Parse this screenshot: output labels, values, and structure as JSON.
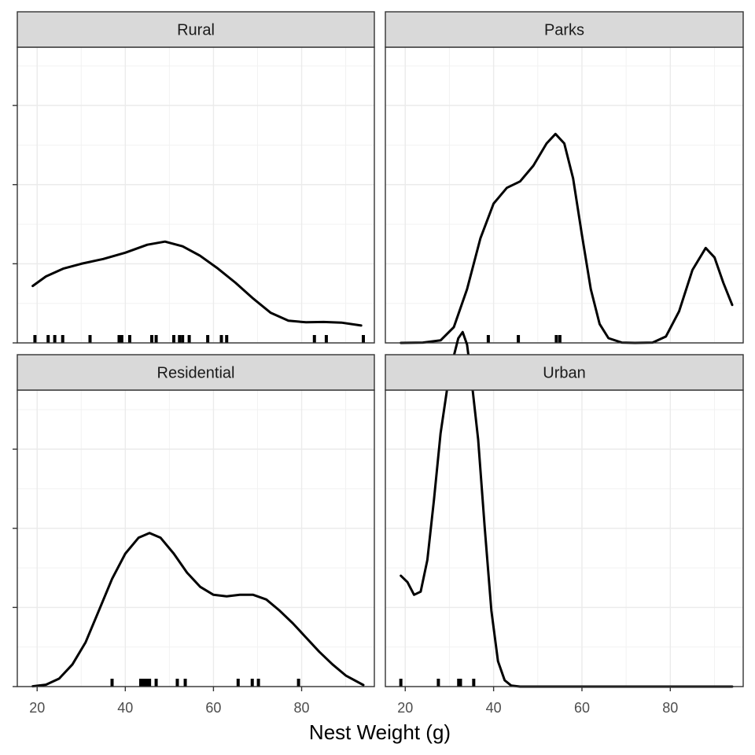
{
  "chart_data": {
    "type": "density",
    "xlabel": "Nest Weight (g)",
    "ylabel": "",
    "x_ticks": [
      20,
      40,
      60,
      80
    ],
    "xlim": [
      15.5,
      96.5
    ],
    "ylim": [
      0,
      1
    ],
    "y_ticks": [
      0,
      0.25,
      0.5,
      0.75
    ],
    "y_tick_labels_shown": false,
    "grid": true,
    "theme": "bw",
    "colors": {
      "panel_border": "#333333",
      "strip_fill": "#d9d9d9",
      "grid_major": "#ebebeb",
      "grid_minor": "#f2f2f2",
      "curve": "#000000"
    },
    "panels": [
      {
        "name": "Rural",
        "density": [
          [
            19,
            0.18
          ],
          [
            22,
            0.21
          ],
          [
            26,
            0.235
          ],
          [
            30,
            0.25
          ],
          [
            35,
            0.265
          ],
          [
            40,
            0.285
          ],
          [
            45,
            0.31
          ],
          [
            49,
            0.32
          ],
          [
            53,
            0.305
          ],
          [
            57,
            0.275
          ],
          [
            61,
            0.235
          ],
          [
            65,
            0.19
          ],
          [
            69,
            0.14
          ],
          [
            73,
            0.095
          ],
          [
            77,
            0.07
          ],
          [
            81,
            0.065
          ],
          [
            85,
            0.066
          ],
          [
            89,
            0.064
          ],
          [
            93.5,
            0.055
          ]
        ],
        "rug": [
          19.5,
          22.5,
          24,
          25.8,
          32,
          38.6,
          39.2,
          41,
          46,
          47,
          51,
          52.3,
          53,
          54.5,
          58.7,
          61.8,
          63,
          82.9,
          85.6,
          94
        ]
      },
      {
        "name": "Parks",
        "density": [
          [
            19,
            0
          ],
          [
            24,
            0.001
          ],
          [
            28,
            0.008
          ],
          [
            31,
            0.05
          ],
          [
            34,
            0.17
          ],
          [
            37,
            0.33
          ],
          [
            40,
            0.44
          ],
          [
            43,
            0.49
          ],
          [
            46,
            0.51
          ],
          [
            49,
            0.56
          ],
          [
            52,
            0.63
          ],
          [
            54,
            0.66
          ],
          [
            56,
            0.63
          ],
          [
            58,
            0.52
          ],
          [
            60,
            0.34
          ],
          [
            62,
            0.17
          ],
          [
            64,
            0.06
          ],
          [
            66,
            0.015
          ],
          [
            69,
            0.001
          ],
          [
            72,
            0
          ],
          [
            76,
            0.001
          ],
          [
            79,
            0.02
          ],
          [
            82,
            0.1
          ],
          [
            85,
            0.23
          ],
          [
            88,
            0.3
          ],
          [
            90,
            0.27
          ],
          [
            92,
            0.19
          ],
          [
            94,
            0.12
          ]
        ],
        "rug": [
          38.8,
          45.6,
          54.2,
          55
        ]
      },
      {
        "name": "Residential",
        "density": [
          [
            19,
            0.001
          ],
          [
            22,
            0.006
          ],
          [
            25,
            0.025
          ],
          [
            28,
            0.07
          ],
          [
            31,
            0.14
          ],
          [
            34,
            0.24
          ],
          [
            37,
            0.34
          ],
          [
            40,
            0.42
          ],
          [
            43,
            0.47
          ],
          [
            45.5,
            0.485
          ],
          [
            48,
            0.47
          ],
          [
            51,
            0.42
          ],
          [
            54,
            0.36
          ],
          [
            57,
            0.315
          ],
          [
            60,
            0.29
          ],
          [
            63,
            0.285
          ],
          [
            66,
            0.29
          ],
          [
            69,
            0.29
          ],
          [
            72,
            0.275
          ],
          [
            75,
            0.24
          ],
          [
            78,
            0.2
          ],
          [
            81,
            0.155
          ],
          [
            84,
            0.11
          ],
          [
            87,
            0.07
          ],
          [
            90,
            0.035
          ],
          [
            94,
            0.005
          ]
        ],
        "rug": [
          37,
          43.5,
          44,
          44.5,
          45,
          45.5,
          47,
          51.8,
          53.6,
          65.6,
          68.8,
          70.2,
          79.3
        ]
      },
      {
        "name": "Urban",
        "density": [
          [
            19,
            0.35
          ],
          [
            20.5,
            0.33
          ],
          [
            22,
            0.29
          ],
          [
            23.5,
            0.3
          ],
          [
            25,
            0.4
          ],
          [
            26.5,
            0.59
          ],
          [
            28,
            0.8
          ],
          [
            30,
            0.99
          ],
          [
            32,
            1.1
          ],
          [
            33,
            1.12
          ],
          [
            34,
            1.08
          ],
          [
            35,
            0.97
          ],
          [
            36.5,
            0.78
          ],
          [
            38,
            0.5
          ],
          [
            39.5,
            0.24
          ],
          [
            41,
            0.08
          ],
          [
            42.5,
            0.02
          ],
          [
            44,
            0.003
          ],
          [
            46,
            0
          ],
          [
            94,
            0
          ]
        ],
        "rug": [
          19,
          27.5,
          32.1,
          32.5,
          35.5
        ]
      }
    ]
  }
}
